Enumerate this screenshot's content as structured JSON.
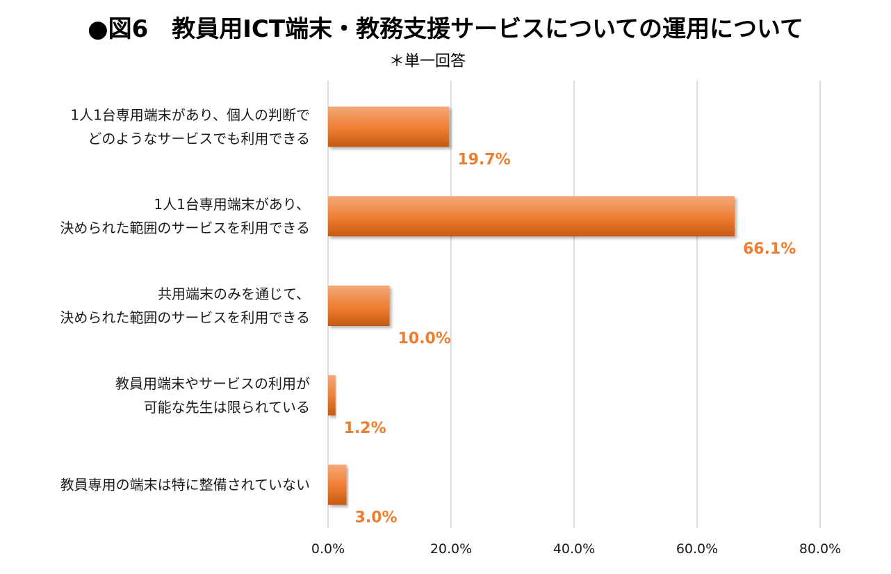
{
  "title": "●図6　教員用ICT端末・教務支援サービスについての運用について",
  "subtitle": "＊単一回答",
  "colors": {
    "bar": "#ed7d31",
    "bar_light": "#f4a878",
    "bar_dark": "#c55a11",
    "data_label": "#ed7d31",
    "grid": "#d0d0d0"
  },
  "chart_data": {
    "type": "bar",
    "orientation": "horizontal",
    "categories": [
      [
        "1人1台専用端末があり、個人の判断で",
        "どのようなサービスでも利用できる"
      ],
      [
        "1人1台専用端末があり、",
        "決められた範囲のサービスを利用できる"
      ],
      [
        "共用端末のみを通じて、",
        "決められた範囲のサービスを利用できる"
      ],
      [
        "教員用端末やサービスの利用が",
        "可能な先生は限られている"
      ],
      [
        "教員専用の端末は特に整備されていない"
      ]
    ],
    "values": [
      19.7,
      66.1,
      10.0,
      1.2,
      3.0
    ],
    "data_labels": [
      "19.7%",
      "66.1%",
      "10.0%",
      "1.2%",
      "3.0%"
    ],
    "xlim": [
      0,
      80
    ],
    "x_ticks": [
      0,
      20,
      40,
      60,
      80
    ],
    "x_tick_labels": [
      "0.0%",
      "20.0%",
      "40.0%",
      "60.0%",
      "80.0%"
    ],
    "grid": true,
    "legend": "none"
  }
}
